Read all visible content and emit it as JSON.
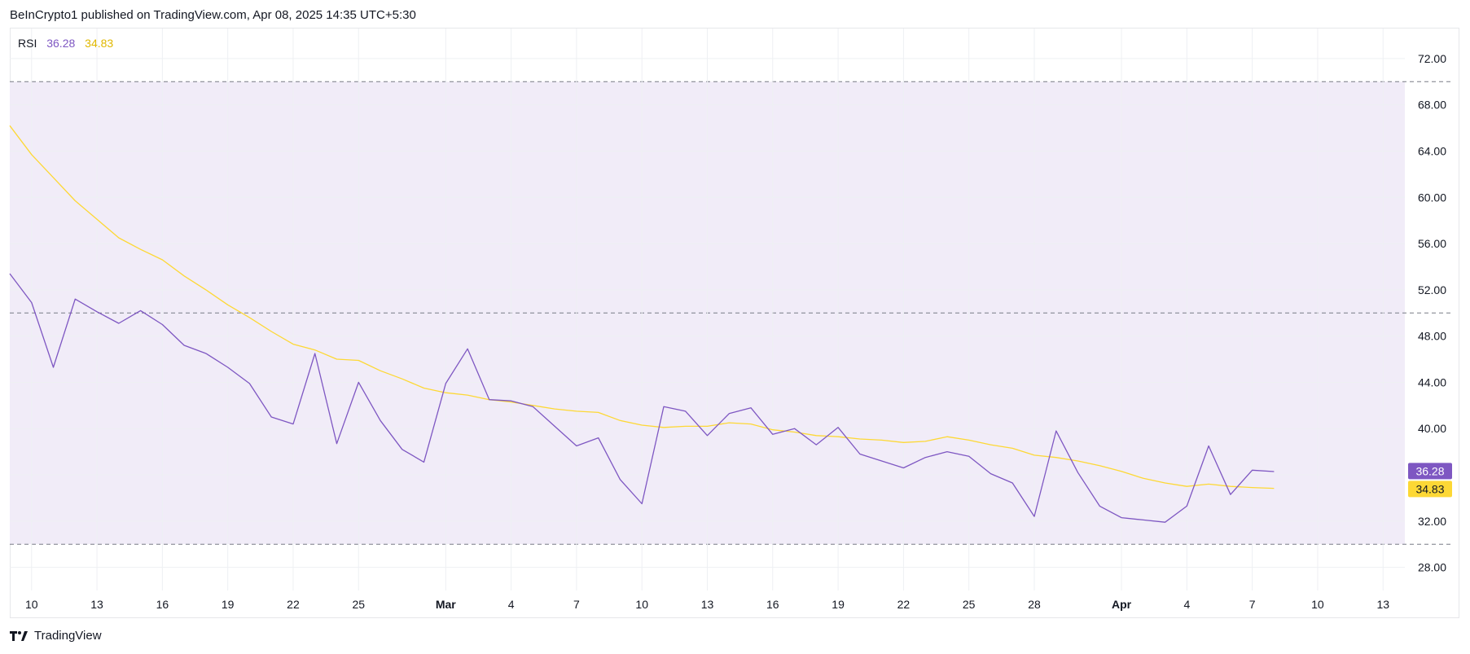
{
  "header": {
    "attribution": "BeInCrypto1 published on TradingView.com, Apr 08, 2025 14:35 UTC+5:30"
  },
  "legend": {
    "indicator": "RSI",
    "rsi_value": "36.28",
    "ma_value": "34.83"
  },
  "footer": {
    "brand": "TradingView",
    "logo_icon": "tradingview-logo-icon"
  },
  "colors": {
    "rsi_line": "#7e57c2",
    "ma_line": "#fdd835",
    "band_fill": "#f1ecf8",
    "band_dash": "#787b86",
    "grid": "#eef0f3",
    "axis_text": "#131722"
  },
  "chart_data": {
    "type": "line",
    "title": "",
    "xlabel": "",
    "ylabel": "",
    "ylim": [
      26.0,
      74.6
    ],
    "y_ticks": [
      "28.00",
      "32.00",
      "36.00",
      "40.00",
      "44.00",
      "48.00",
      "52.00",
      "56.00",
      "60.00",
      "64.00",
      "68.00",
      "72.00"
    ],
    "x_ticks": [
      {
        "label": "10",
        "date": "2025-02-10"
      },
      {
        "label": "13",
        "date": "2025-02-13"
      },
      {
        "label": "16",
        "date": "2025-02-16"
      },
      {
        "label": "19",
        "date": "2025-02-19"
      },
      {
        "label": "22",
        "date": "2025-02-22"
      },
      {
        "label": "25",
        "date": "2025-02-25"
      },
      {
        "label": "Mar",
        "date": "2025-03-01"
      },
      {
        "label": "4",
        "date": "2025-03-04"
      },
      {
        "label": "7",
        "date": "2025-03-07"
      },
      {
        "label": "10",
        "date": "2025-03-10"
      },
      {
        "label": "13",
        "date": "2025-03-13"
      },
      {
        "label": "16",
        "date": "2025-03-16"
      },
      {
        "label": "19",
        "date": "2025-03-19"
      },
      {
        "label": "22",
        "date": "2025-03-22"
      },
      {
        "label": "25",
        "date": "2025-03-25"
      },
      {
        "label": "28",
        "date": "2025-03-28"
      },
      {
        "label": "Apr",
        "date": "2025-04-01"
      },
      {
        "label": "4",
        "date": "2025-04-04"
      },
      {
        "label": "7",
        "date": "2025-04-07"
      },
      {
        "label": "10",
        "date": "2025-04-10"
      },
      {
        "label": "13",
        "date": "2025-04-13"
      }
    ],
    "x_range": [
      "2025-02-09",
      "2025-04-14"
    ],
    "bands": {
      "upper": 70,
      "middle": 50,
      "lower": 30
    },
    "grid": true,
    "legend_position": "top-left",
    "dates": [
      "2025-02-09",
      "2025-02-10",
      "2025-02-11",
      "2025-02-12",
      "2025-02-13",
      "2025-02-14",
      "2025-02-15",
      "2025-02-16",
      "2025-02-17",
      "2025-02-18",
      "2025-02-19",
      "2025-02-20",
      "2025-02-21",
      "2025-02-22",
      "2025-02-23",
      "2025-02-24",
      "2025-02-25",
      "2025-02-26",
      "2025-02-27",
      "2025-02-28",
      "2025-03-01",
      "2025-03-02",
      "2025-03-03",
      "2025-03-04",
      "2025-03-05",
      "2025-03-06",
      "2025-03-07",
      "2025-03-08",
      "2025-03-09",
      "2025-03-10",
      "2025-03-11",
      "2025-03-12",
      "2025-03-13",
      "2025-03-14",
      "2025-03-15",
      "2025-03-16",
      "2025-03-17",
      "2025-03-18",
      "2025-03-19",
      "2025-03-20",
      "2025-03-21",
      "2025-03-22",
      "2025-03-23",
      "2025-03-24",
      "2025-03-25",
      "2025-03-26",
      "2025-03-27",
      "2025-03-28",
      "2025-03-29",
      "2025-03-30",
      "2025-03-31",
      "2025-04-01",
      "2025-04-02",
      "2025-04-03",
      "2025-04-04",
      "2025-04-05",
      "2025-04-06",
      "2025-04-07",
      "2025-04-08"
    ],
    "series": [
      {
        "values": [
          53.4,
          50.9,
          45.3,
          51.2,
          50.1,
          49.1,
          50.2,
          49.0,
          47.2,
          46.5,
          45.3,
          43.9,
          41.0,
          40.4,
          46.5,
          38.7,
          44.0,
          40.7,
          38.2,
          37.1,
          43.9,
          46.9,
          42.5,
          42.4,
          41.9,
          40.2,
          38.5,
          39.2,
          35.6,
          33.5,
          41.9,
          41.5,
          39.4,
          41.3,
          41.8,
          39.5,
          40.0,
          38.6,
          40.1,
          37.8,
          37.2,
          36.6,
          37.5,
          38.0,
          37.6,
          36.1,
          35.3,
          32.4,
          39.8,
          36.2,
          33.3,
          32.3,
          32.1,
          31.9,
          33.3,
          38.5,
          34.3,
          36.4,
          36.28
        ]
      },
      {
        "values": [
          66.2,
          63.7,
          61.7,
          59.7,
          58.1,
          56.5,
          55.5,
          54.6,
          53.2,
          52.0,
          50.7,
          49.6,
          48.4,
          47.3,
          46.8,
          46.0,
          45.9,
          45.0,
          44.3,
          43.5,
          43.1,
          42.9,
          42.5,
          42.3,
          42.0,
          41.7,
          41.5,
          41.4,
          40.7,
          40.3,
          40.1,
          40.2,
          40.2,
          40.5,
          40.4,
          39.9,
          39.7,
          39.4,
          39.3,
          39.1,
          39.0,
          38.8,
          38.9,
          39.3,
          39.0,
          38.6,
          38.3,
          37.7,
          37.5,
          37.2,
          36.8,
          36.3,
          35.7,
          35.3,
          35.0,
          35.2,
          35.0,
          34.9,
          34.83
        ]
      }
    ]
  }
}
